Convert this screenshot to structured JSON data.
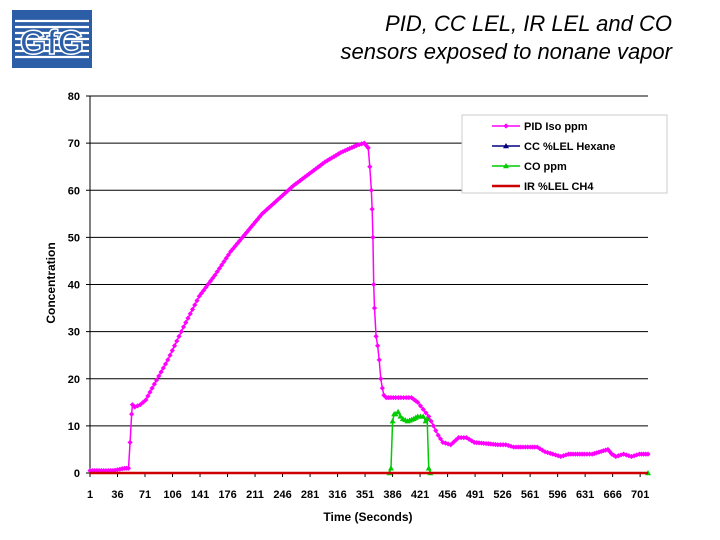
{
  "logo": {
    "text": "GfG"
  },
  "title": {
    "line1": "PID, CC LEL, IR LEL and CO",
    "line2": "sensors exposed to nonane vapor"
  },
  "chart_data": {
    "type": "line",
    "xlabel": "Time (Seconds)",
    "ylabel": "Concentration",
    "xlim": [
      1,
      711
    ],
    "ylim": [
      0,
      80
    ],
    "yticks": [
      0,
      10,
      20,
      30,
      40,
      50,
      60,
      70,
      80
    ],
    "xticks": [
      1,
      36,
      71,
      106,
      141,
      176,
      211,
      246,
      281,
      316,
      351,
      386,
      421,
      456,
      491,
      526,
      561,
      596,
      631,
      666,
      701
    ],
    "grid": true,
    "legend_position": "top-right",
    "series": [
      {
        "name": "PID Iso ppm",
        "color": "#ff00ff",
        "marker": "diamond",
        "points": [
          [
            1,
            0.5
          ],
          [
            30,
            0.5
          ],
          [
            45,
            1
          ],
          [
            50,
            1
          ],
          [
            52,
            6.5
          ],
          [
            54,
            12.5
          ],
          [
            55,
            14.5
          ],
          [
            58,
            14
          ],
          [
            65,
            14.5
          ],
          [
            72,
            15.5
          ],
          [
            80,
            18
          ],
          [
            100,
            24
          ],
          [
            120,
            31
          ],
          [
            140,
            37.5
          ],
          [
            160,
            42
          ],
          [
            180,
            47
          ],
          [
            200,
            51
          ],
          [
            220,
            55
          ],
          [
            240,
            58
          ],
          [
            260,
            61
          ],
          [
            280,
            63.5
          ],
          [
            300,
            66
          ],
          [
            320,
            68
          ],
          [
            340,
            69.5
          ],
          [
            350,
            70
          ],
          [
            355,
            69
          ],
          [
            357,
            65
          ],
          [
            359,
            60
          ],
          [
            360,
            56
          ],
          [
            361,
            50
          ],
          [
            362,
            40
          ],
          [
            363,
            35
          ],
          [
            365,
            29
          ],
          [
            367,
            27
          ],
          [
            369,
            24
          ],
          [
            371,
            20
          ],
          [
            373,
            18
          ],
          [
            375,
            16.5
          ],
          [
            378,
            16
          ],
          [
            390,
            16
          ],
          [
            400,
            16
          ],
          [
            410,
            16
          ],
          [
            418,
            15
          ],
          [
            425,
            13.5
          ],
          [
            432,
            12
          ],
          [
            438,
            10
          ],
          [
            444,
            8
          ],
          [
            450,
            6.5
          ],
          [
            460,
            6
          ],
          [
            470,
            7.5
          ],
          [
            480,
            7.5
          ],
          [
            490,
            6.5
          ],
          [
            520,
            6
          ],
          [
            530,
            6
          ],
          [
            540,
            5.5
          ],
          [
            570,
            5.5
          ],
          [
            580,
            4.5
          ],
          [
            590,
            4
          ],
          [
            600,
            3.5
          ],
          [
            610,
            4
          ],
          [
            630,
            4
          ],
          [
            640,
            4
          ],
          [
            660,
            5
          ],
          [
            665,
            4
          ],
          [
            670,
            3.5
          ],
          [
            680,
            4
          ],
          [
            690,
            3.5
          ],
          [
            700,
            4
          ],
          [
            711,
            4
          ]
        ]
      },
      {
        "name": "CC %LEL Hexane",
        "color": "#000080",
        "marker": "triangle",
        "points": [
          [
            1,
            0
          ],
          [
            711,
            0
          ]
        ]
      },
      {
        "name": "CO ppm",
        "color": "#00cc00",
        "marker": "triangle",
        "points": [
          [
            1,
            0
          ],
          [
            382,
            0
          ],
          [
            384,
            1
          ],
          [
            386,
            11
          ],
          [
            388,
            12.5
          ],
          [
            390,
            12.5
          ],
          [
            393,
            13
          ],
          [
            396,
            12
          ],
          [
            399,
            11.5
          ],
          [
            405,
            11
          ],
          [
            413,
            11.5
          ],
          [
            418,
            12
          ],
          [
            425,
            12
          ],
          [
            428,
            11
          ],
          [
            430,
            11.5
          ],
          [
            432,
            1
          ],
          [
            434,
            0
          ],
          [
            711,
            0
          ]
        ]
      },
      {
        "name": "IR %LEL CH4",
        "color": "#cc0000",
        "marker": "none",
        "points": [
          [
            1,
            0
          ],
          [
            711,
            0
          ]
        ]
      }
    ]
  }
}
